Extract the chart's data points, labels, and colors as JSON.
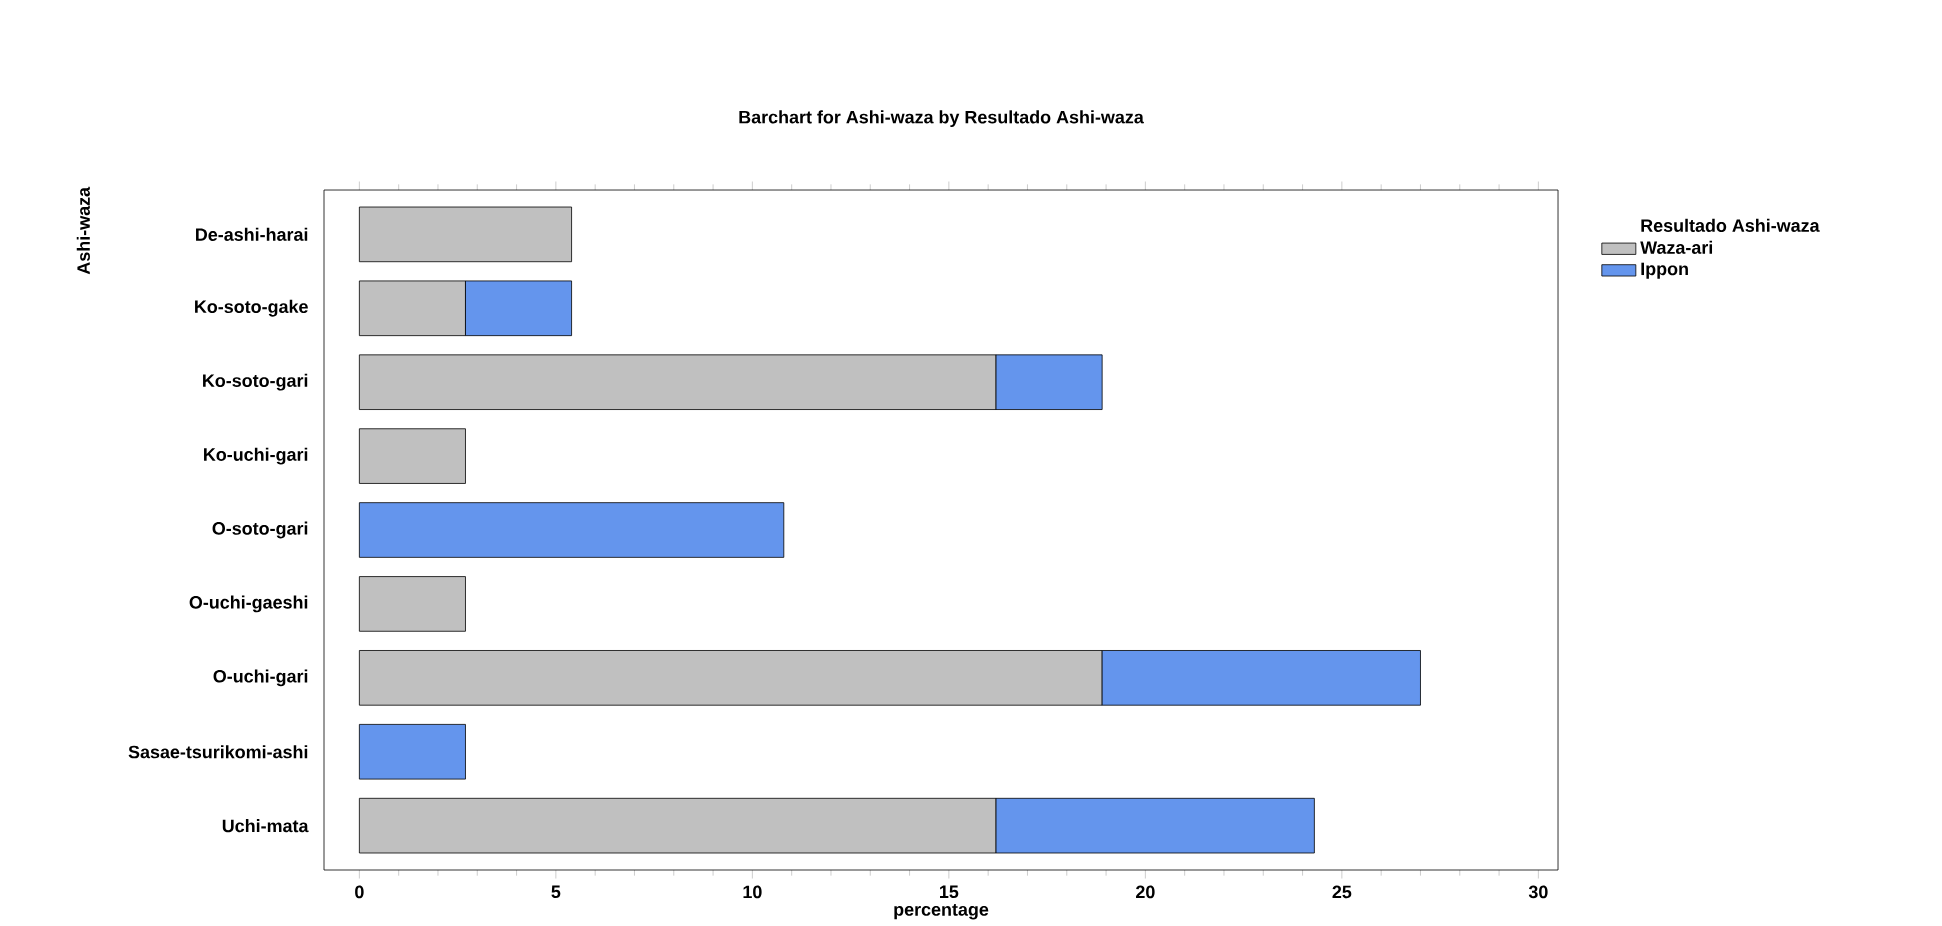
{
  "chart_data": {
    "type": "bar",
    "orientation": "horizontal",
    "stacked": true,
    "title": "Barchart for Ashi-waza by Resultado Ashi-waza",
    "xlabel": "percentage",
    "ylabel": "Ashi-waza",
    "legend_title": "Resultado Ashi-waza",
    "legend": "right",
    "categories": [
      "De-ashi-harai",
      "Ko-soto-gake",
      "Ko-soto-gari",
      "Ko-uchi-gari",
      "O-soto-gari",
      "O-uchi-gaeshi",
      "O-uchi-gari",
      "Sasae-tsurikomi-ashi",
      "Uchi-mata"
    ],
    "series": [
      {
        "name": "Waza-ari",
        "color": "#c0c0c0",
        "values": [
          5.4,
          2.7,
          16.2,
          2.7,
          null,
          2.7,
          18.9,
          null,
          16.2
        ]
      },
      {
        "name": "Ippon",
        "color": "#6495ed",
        "values": [
          null,
          2.7,
          2.7,
          null,
          10.8,
          null,
          8.1,
          2.7,
          8.1
        ]
      }
    ],
    "xlim": [
      -0.9,
      30.5
    ],
    "xticks": [
      0,
      5,
      10,
      15,
      20,
      25,
      30
    ],
    "grid": false
  }
}
